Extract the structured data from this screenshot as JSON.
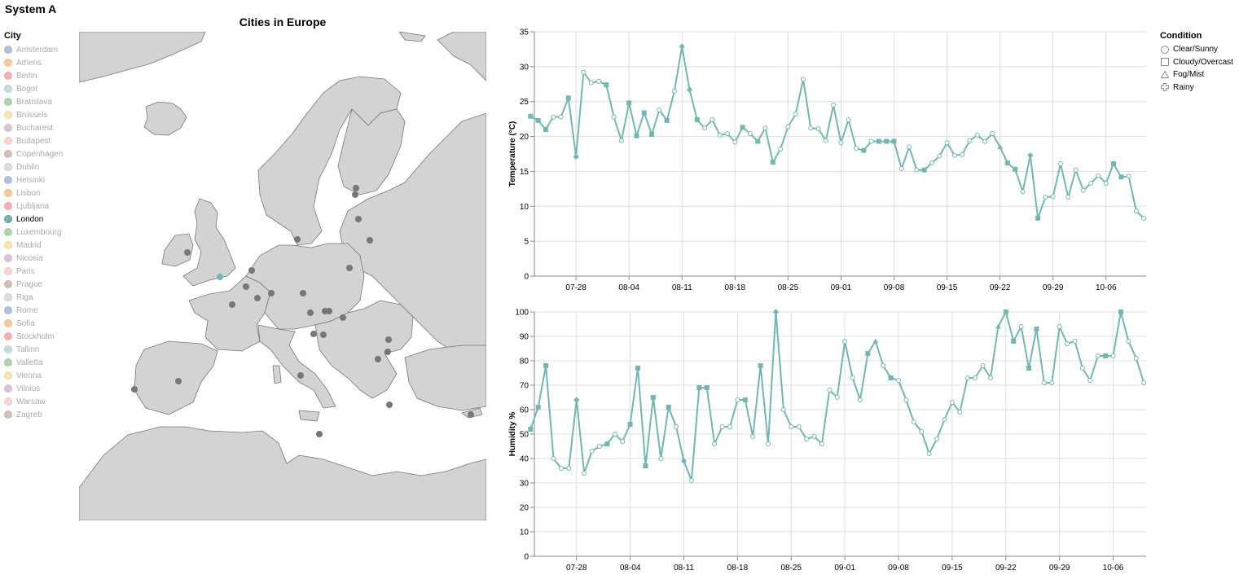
{
  "system_title": "System A",
  "map": {
    "title": "Cities in Europe",
    "legend_title": "City",
    "cities": [
      {
        "name": "Amsterdam",
        "color": "#4c78a8"
      },
      {
        "name": "Athens",
        "color": "#f58518"
      },
      {
        "name": "Berlin",
        "color": "#e45756"
      },
      {
        "name": "Bogot",
        "color": "#72b7b2"
      },
      {
        "name": "Bratislava",
        "color": "#54a24b"
      },
      {
        "name": "Brussels",
        "color": "#eeca3b"
      },
      {
        "name": "Bucharest",
        "color": "#b279a2"
      },
      {
        "name": "Budapest",
        "color": "#ff9da6"
      },
      {
        "name": "Copenhagen",
        "color": "#9d755d"
      },
      {
        "name": "Dublin",
        "color": "#bab0ac"
      },
      {
        "name": "Helsinki",
        "color": "#4c78a8"
      },
      {
        "name": "Lisbon",
        "color": "#f58518"
      },
      {
        "name": "Ljubljana",
        "color": "#e45756"
      },
      {
        "name": "London",
        "color": "#72b7b2",
        "selected": true
      },
      {
        "name": "Luxembourg",
        "color": "#54a24b"
      },
      {
        "name": "Madrid",
        "color": "#eeca3b"
      },
      {
        "name": "Nicosia",
        "color": "#b279a2"
      },
      {
        "name": "Paris",
        "color": "#ff9da6"
      },
      {
        "name": "Prague",
        "color": "#9d755d"
      },
      {
        "name": "Riga",
        "color": "#bab0ac"
      },
      {
        "name": "Rome",
        "color": "#4c78a8"
      },
      {
        "name": "Sofia",
        "color": "#f58518"
      },
      {
        "name": "Stockholm",
        "color": "#e45756"
      },
      {
        "name": "Tallinn",
        "color": "#72b7b2"
      },
      {
        "name": "Valletta",
        "color": "#54a24b"
      },
      {
        "name": "Vienna",
        "color": "#eeca3b"
      },
      {
        "name": "Vilnius",
        "color": "#b279a2"
      },
      {
        "name": "Warsaw",
        "color": "#ff9da6"
      },
      {
        "name": "Zagreb",
        "color": "#9d755d"
      }
    ],
    "land_color": "#d3d3d3",
    "point_color": "#777777"
  },
  "condition_legend": {
    "title": "Condition",
    "items": [
      {
        "label": "Clear/Sunny",
        "shape": "circle"
      },
      {
        "label": "Cloudy/Overcast",
        "shape": "square"
      },
      {
        "label": "Fog/Mist",
        "shape": "triangle"
      },
      {
        "label": "Rainy",
        "shape": "cross"
      }
    ]
  },
  "chart_data": [
    {
      "type": "line",
      "ylabel": "Temperature (°C)",
      "ylim": [
        0,
        35
      ],
      "yticks": [
        0,
        5,
        10,
        15,
        20,
        25,
        30,
        35
      ],
      "xticks": [
        "07-28",
        "08-04",
        "08-11",
        "08-18",
        "08-25",
        "09-01",
        "09-08",
        "09-15",
        "09-22",
        "09-29",
        "10-06"
      ],
      "x_start": "2024-07-22",
      "color": "#72b7b2",
      "grid": true,
      "values": [
        22.9,
        22.3,
        21.0,
        22.8,
        22.8,
        25.5,
        17.1,
        29.2,
        27.7,
        27.9,
        27.4,
        22.8,
        19.4,
        24.8,
        20.1,
        23.4,
        20.3,
        23.8,
        22.3,
        26.5,
        32.9,
        26.7,
        22.4,
        21.2,
        22.4,
        20.2,
        20.4,
        19.2,
        21.3,
        20.4,
        19.3,
        21.2,
        16.3,
        18.2,
        21.4,
        23.2,
        28.2,
        21.2,
        21.1,
        19.4,
        24.5,
        19.1,
        22.4,
        18.3,
        18.0,
        19.3,
        19.3,
        19.3,
        19.3,
        15.4,
        18.5,
        15.2,
        15.2,
        16.2,
        17.2,
        19.1,
        17.3,
        17.4,
        19.4,
        20.2,
        19.3,
        20.4,
        18.5,
        16.2,
        15.3,
        12.1,
        17.3,
        8.3,
        11.3,
        11.4,
        16.1,
        11.3,
        15.2,
        12.3,
        13.3,
        14.4,
        13.3,
        16.1,
        14.2,
        14.3,
        9.3,
        8.3
      ],
      "conditions": [
        "square",
        "square",
        "square",
        "circle",
        "circle",
        "square",
        "cross",
        "circle",
        "circle",
        "circle",
        "square",
        "circle",
        "circle",
        "square",
        "square",
        "square",
        "square",
        "circle",
        "square",
        "circle",
        "cross",
        "cross",
        "square",
        "circle",
        "circle",
        "circle",
        "circle",
        "circle",
        "square",
        "circle",
        "square",
        "circle",
        "square",
        "circle",
        "circle",
        "circle",
        "circle",
        "circle",
        "circle",
        "circle",
        "circle",
        "circle",
        "circle",
        "circle",
        "square",
        "circle",
        "square",
        "square",
        "square",
        "circle",
        "circle",
        "circle",
        "square",
        "circle",
        "circle",
        "circle",
        "circle",
        "circle",
        "circle",
        "circle",
        "circle",
        "circle",
        "triangle",
        "square",
        "square",
        "circle",
        "cross",
        "square",
        "circle",
        "circle",
        "circle",
        "circle",
        "circle",
        "circle",
        "circle",
        "circle",
        "circle",
        "square",
        "square",
        "circle",
        "circle",
        "circle"
      ]
    },
    {
      "type": "line",
      "ylabel": "Humidity %",
      "ylim": [
        0,
        100
      ],
      "yticks": [
        0,
        10,
        20,
        30,
        40,
        50,
        60,
        70,
        80,
        90,
        100
      ],
      "xticks": [
        "07-28",
        "08-04",
        "08-11",
        "08-18",
        "08-25",
        "09-01",
        "09-08",
        "09-15",
        "09-22",
        "09-29",
        "10-06"
      ],
      "x_start": "2024-07-22",
      "color": "#72b7b2",
      "grid": true,
      "values": [
        52,
        61,
        78,
        40,
        36,
        36,
        64,
        34,
        43,
        45,
        46,
        50,
        47,
        54,
        77,
        37,
        65,
        40,
        61,
        53,
        39,
        31,
        69,
        69,
        46,
        53,
        53,
        64,
        64,
        49,
        78,
        46,
        100,
        60,
        53,
        53,
        48,
        49,
        46,
        68,
        65,
        88,
        73,
        64,
        83,
        88,
        78,
        73,
        72,
        64,
        55,
        51,
        42,
        48,
        56,
        63,
        59,
        73,
        73,
        78,
        73,
        94,
        100,
        88,
        94,
        77,
        93,
        71,
        71,
        94,
        87,
        88,
        77,
        72,
        82,
        82,
        82,
        100,
        88,
        81,
        71
      ],
      "conditions": [
        "square",
        "square",
        "square",
        "circle",
        "circle",
        "circle",
        "cross",
        "circle",
        "circle",
        "circle",
        "square",
        "circle",
        "circle",
        "square",
        "square",
        "square",
        "square",
        "circle",
        "square",
        "circle",
        "cross",
        "circle",
        "square",
        "square",
        "circle",
        "circle",
        "circle",
        "circle",
        "square",
        "circle",
        "square",
        "circle",
        "cross",
        "circle",
        "circle",
        "circle",
        "circle",
        "circle",
        "circle",
        "circle",
        "circle",
        "circle",
        "circle",
        "circle",
        "square",
        "triangle",
        "circle",
        "square",
        "circle",
        "circle",
        "circle",
        "circle",
        "circle",
        "circle",
        "circle",
        "circle",
        "circle",
        "circle",
        "circle",
        "circle",
        "circle",
        "triangle",
        "square",
        "square",
        "circle",
        "square",
        "square",
        "circle",
        "circle",
        "circle",
        "circle",
        "circle",
        "circle",
        "circle",
        "circle",
        "square",
        "circle",
        "square",
        "circle",
        "circle",
        "circle"
      ]
    }
  ]
}
